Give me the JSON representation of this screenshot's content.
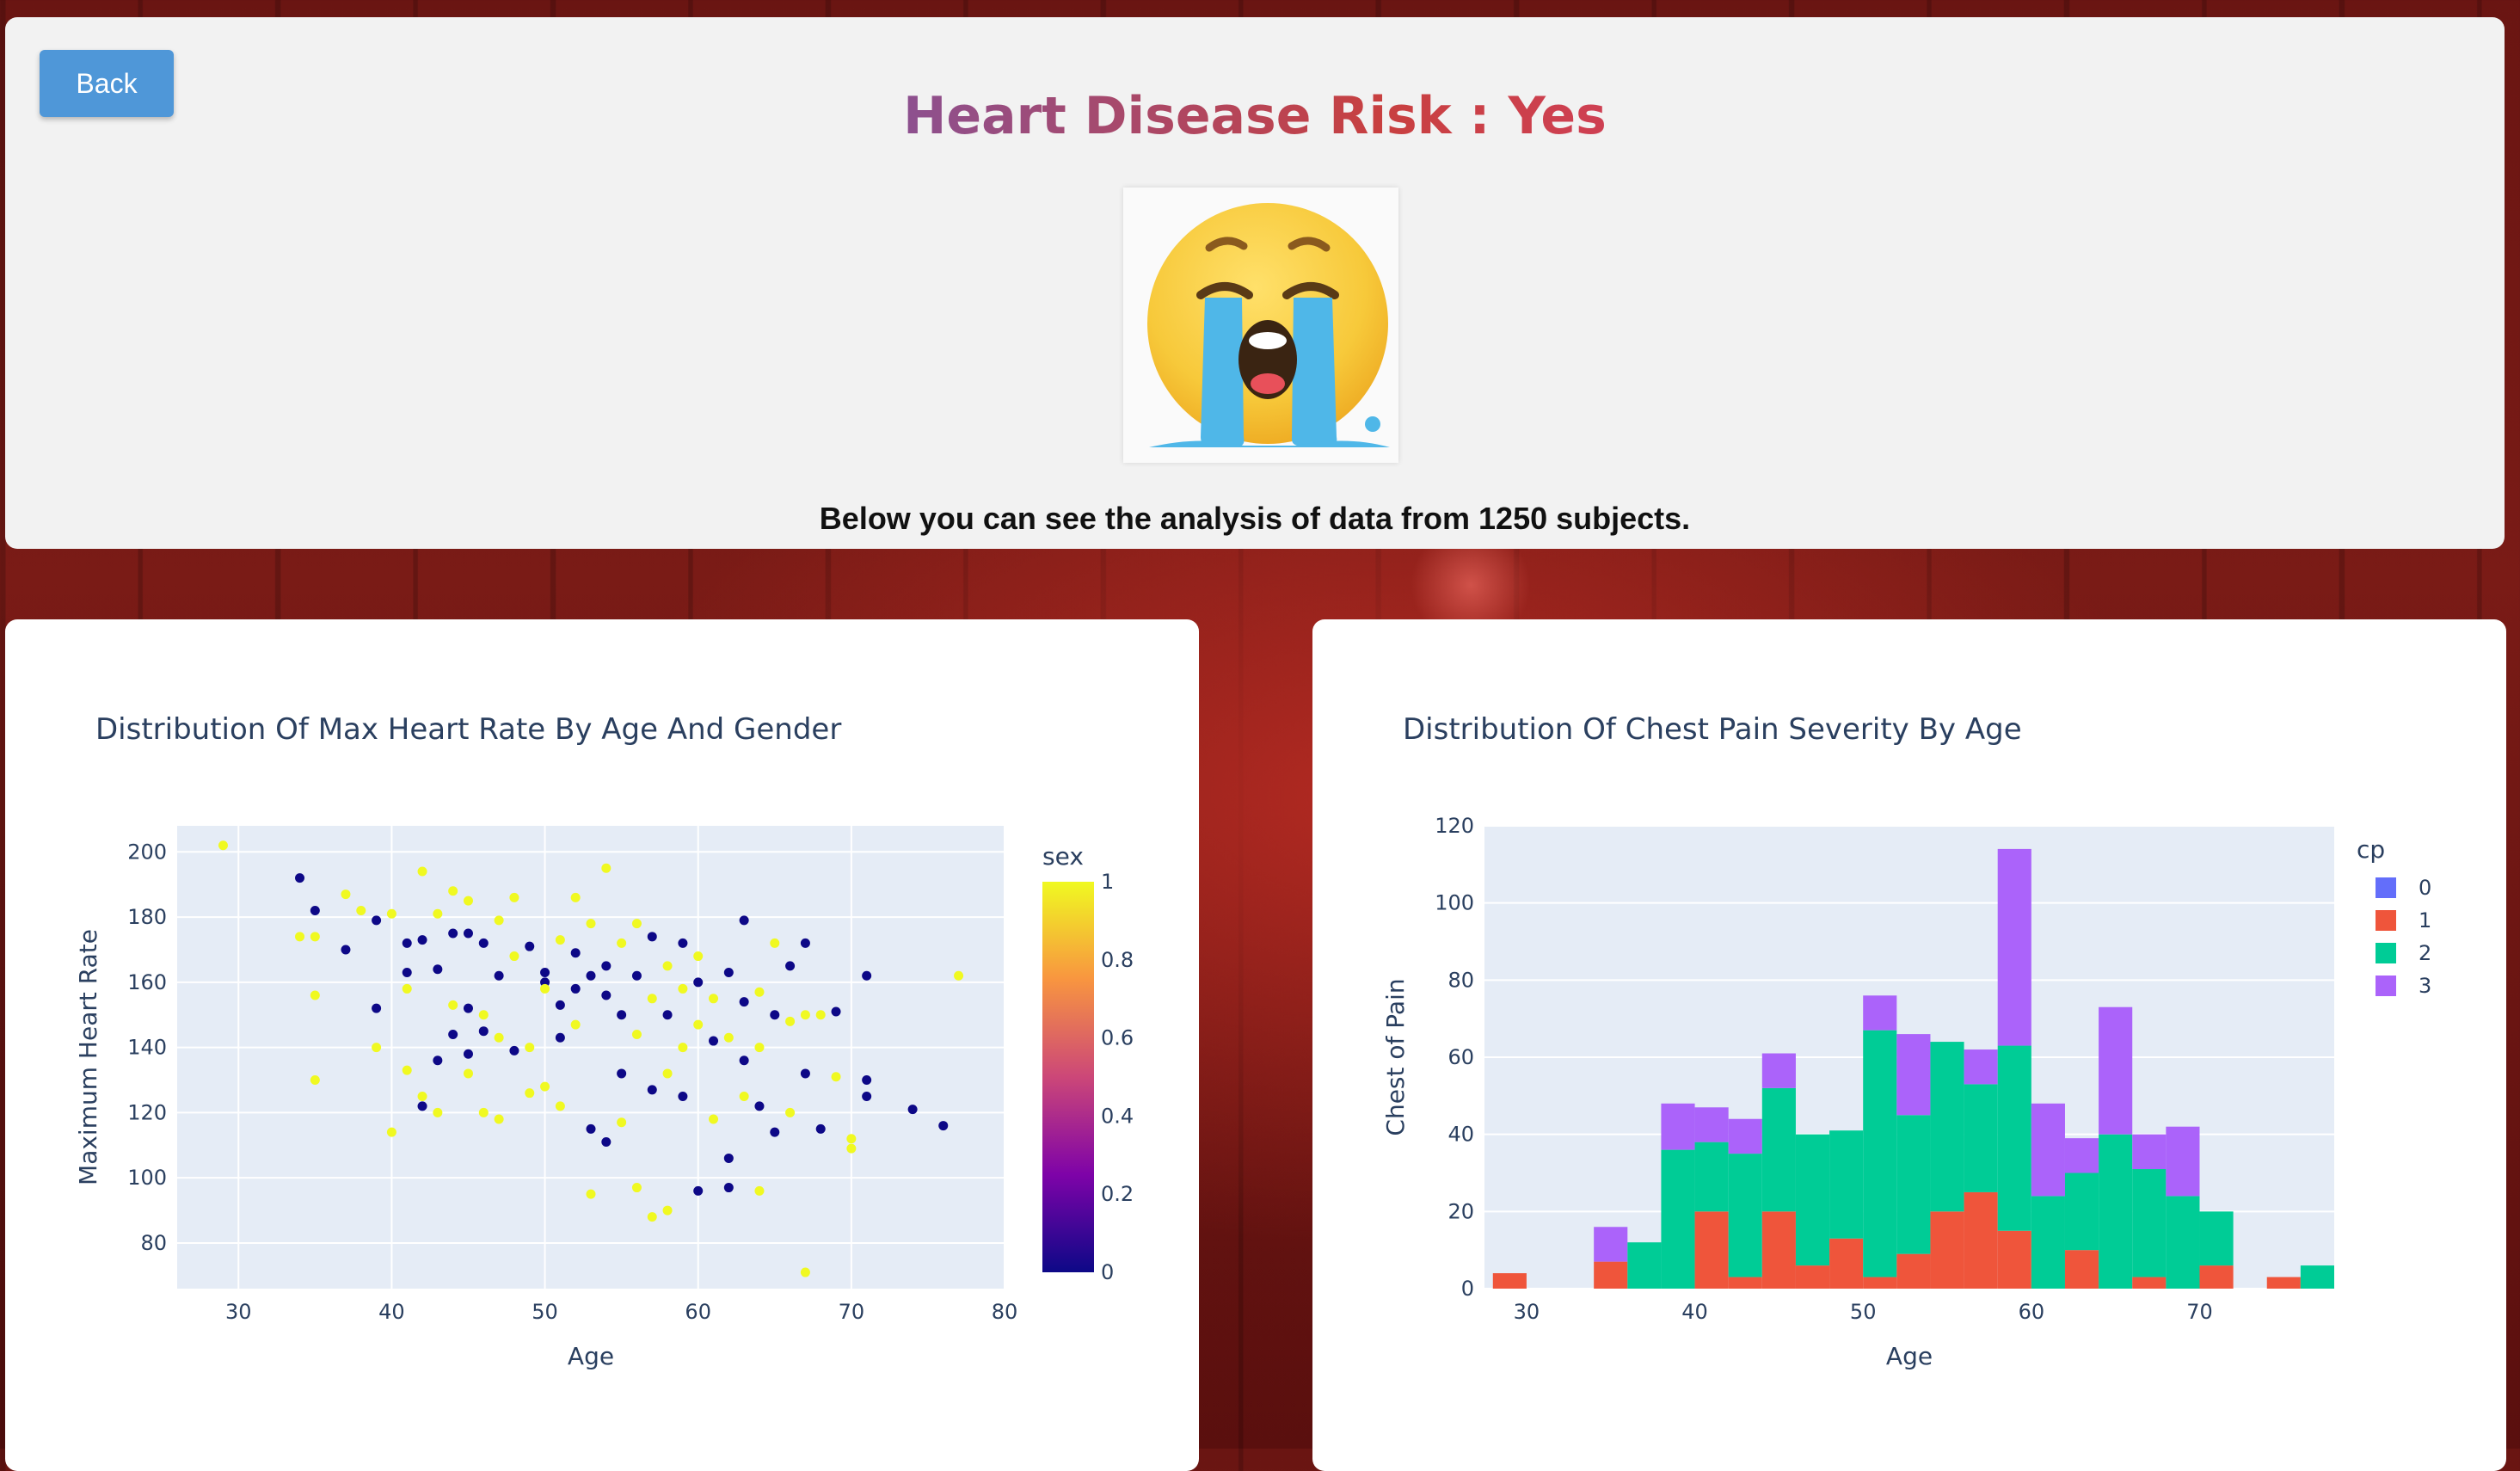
{
  "header": {
    "back_label": "Back",
    "title_prefix": "Heart Disease Risk : ",
    "title_value": "Yes",
    "emoji_icon": "loudly-crying-face-emoji",
    "subtitle": "Below you can see the analysis of data from 1250 subjects."
  },
  "chart_data": [
    {
      "type": "scatter",
      "title": "Distribution Of Max Heart Rate By Age And Gender",
      "xlabel": "Age",
      "ylabel": "Maximum Heart Rate",
      "xlim": [
        26,
        80
      ],
      "ylim": [
        66,
        208
      ],
      "x_ticks": [
        30,
        40,
        50,
        60,
        70,
        80
      ],
      "y_ticks": [
        80,
        100,
        120,
        140,
        160,
        180,
        200
      ],
      "grid": true,
      "colorbar": {
        "title": "sex",
        "ticks": [
          0,
          0.2,
          0.4,
          0.6,
          0.8,
          1
        ],
        "colors": [
          "#0d0887",
          "#7e03a8",
          "#cc4778",
          "#f89540",
          "#f0f921"
        ]
      },
      "points": [
        {
          "x": 29,
          "y": 202,
          "sex": 1
        },
        {
          "x": 34,
          "y": 192,
          "sex": 0
        },
        {
          "x": 35,
          "y": 182,
          "sex": 0
        },
        {
          "x": 34,
          "y": 174,
          "sex": 1
        },
        {
          "x": 35,
          "y": 174,
          "sex": 1
        },
        {
          "x": 35,
          "y": 156,
          "sex": 1
        },
        {
          "x": 35,
          "y": 130,
          "sex": 1
        },
        {
          "x": 37,
          "y": 170,
          "sex": 0
        },
        {
          "x": 37,
          "y": 187,
          "sex": 1
        },
        {
          "x": 38,
          "y": 182,
          "sex": 1
        },
        {
          "x": 39,
          "y": 179,
          "sex": 0
        },
        {
          "x": 39,
          "y": 152,
          "sex": 0
        },
        {
          "x": 39,
          "y": 140,
          "sex": 1
        },
        {
          "x": 40,
          "y": 114,
          "sex": 1
        },
        {
          "x": 40,
          "y": 181,
          "sex": 1
        },
        {
          "x": 41,
          "y": 172,
          "sex": 0
        },
        {
          "x": 41,
          "y": 163,
          "sex": 0
        },
        {
          "x": 41,
          "y": 158,
          "sex": 1
        },
        {
          "x": 41,
          "y": 133,
          "sex": 1
        },
        {
          "x": 42,
          "y": 194,
          "sex": 1
        },
        {
          "x": 42,
          "y": 173,
          "sex": 0
        },
        {
          "x": 42,
          "y": 122,
          "sex": 0
        },
        {
          "x": 42,
          "y": 125,
          "sex": 1
        },
        {
          "x": 43,
          "y": 181,
          "sex": 1
        },
        {
          "x": 43,
          "y": 164,
          "sex": 0
        },
        {
          "x": 43,
          "y": 136,
          "sex": 0
        },
        {
          "x": 43,
          "y": 120,
          "sex": 1
        },
        {
          "x": 44,
          "y": 188,
          "sex": 1
        },
        {
          "x": 44,
          "y": 175,
          "sex": 0
        },
        {
          "x": 44,
          "y": 144,
          "sex": 0
        },
        {
          "x": 44,
          "y": 153,
          "sex": 1
        },
        {
          "x": 45,
          "y": 185,
          "sex": 1
        },
        {
          "x": 45,
          "y": 175,
          "sex": 0
        },
        {
          "x": 45,
          "y": 152,
          "sex": 0
        },
        {
          "x": 45,
          "y": 138,
          "sex": 0
        },
        {
          "x": 45,
          "y": 132,
          "sex": 1
        },
        {
          "x": 46,
          "y": 172,
          "sex": 0
        },
        {
          "x": 46,
          "y": 150,
          "sex": 1
        },
        {
          "x": 46,
          "y": 145,
          "sex": 0
        },
        {
          "x": 46,
          "y": 120,
          "sex": 1
        },
        {
          "x": 47,
          "y": 179,
          "sex": 1
        },
        {
          "x": 47,
          "y": 162,
          "sex": 0
        },
        {
          "x": 47,
          "y": 143,
          "sex": 1
        },
        {
          "x": 47,
          "y": 118,
          "sex": 1
        },
        {
          "x": 48,
          "y": 186,
          "sex": 1
        },
        {
          "x": 48,
          "y": 168,
          "sex": 1
        },
        {
          "x": 48,
          "y": 139,
          "sex": 0
        },
        {
          "x": 49,
          "y": 171,
          "sex": 0
        },
        {
          "x": 49,
          "y": 140,
          "sex": 1
        },
        {
          "x": 49,
          "y": 126,
          "sex": 1
        },
        {
          "x": 50,
          "y": 163,
          "sex": 0
        },
        {
          "x": 50,
          "y": 160,
          "sex": 0
        },
        {
          "x": 50,
          "y": 158,
          "sex": 1
        },
        {
          "x": 50,
          "y": 128,
          "sex": 1
        },
        {
          "x": 51,
          "y": 173,
          "sex": 1
        },
        {
          "x": 51,
          "y": 153,
          "sex": 0
        },
        {
          "x": 51,
          "y": 143,
          "sex": 0
        },
        {
          "x": 51,
          "y": 122,
          "sex": 1
        },
        {
          "x": 52,
          "y": 186,
          "sex": 1
        },
        {
          "x": 52,
          "y": 169,
          "sex": 0
        },
        {
          "x": 52,
          "y": 158,
          "sex": 0
        },
        {
          "x": 52,
          "y": 147,
          "sex": 1
        },
        {
          "x": 53,
          "y": 178,
          "sex": 1
        },
        {
          "x": 53,
          "y": 162,
          "sex": 0
        },
        {
          "x": 53,
          "y": 115,
          "sex": 0
        },
        {
          "x": 53,
          "y": 95,
          "sex": 1
        },
        {
          "x": 54,
          "y": 195,
          "sex": 1
        },
        {
          "x": 54,
          "y": 165,
          "sex": 0
        },
        {
          "x": 54,
          "y": 156,
          "sex": 0
        },
        {
          "x": 54,
          "y": 111,
          "sex": 0
        },
        {
          "x": 55,
          "y": 172,
          "sex": 1
        },
        {
          "x": 55,
          "y": 150,
          "sex": 0
        },
        {
          "x": 55,
          "y": 132,
          "sex": 0
        },
        {
          "x": 55,
          "y": 117,
          "sex": 1
        },
        {
          "x": 56,
          "y": 178,
          "sex": 1
        },
        {
          "x": 56,
          "y": 162,
          "sex": 0
        },
        {
          "x": 56,
          "y": 144,
          "sex": 1
        },
        {
          "x": 56,
          "y": 97,
          "sex": 1
        },
        {
          "x": 57,
          "y": 174,
          "sex": 0
        },
        {
          "x": 57,
          "y": 155,
          "sex": 1
        },
        {
          "x": 57,
          "y": 127,
          "sex": 0
        },
        {
          "x": 57,
          "y": 88,
          "sex": 1
        },
        {
          "x": 58,
          "y": 165,
          "sex": 1
        },
        {
          "x": 58,
          "y": 150,
          "sex": 0
        },
        {
          "x": 58,
          "y": 132,
          "sex": 1
        },
        {
          "x": 58,
          "y": 90,
          "sex": 1
        },
        {
          "x": 59,
          "y": 172,
          "sex": 0
        },
        {
          "x": 59,
          "y": 158,
          "sex": 1
        },
        {
          "x": 59,
          "y": 140,
          "sex": 1
        },
        {
          "x": 59,
          "y": 125,
          "sex": 0
        },
        {
          "x": 60,
          "y": 168,
          "sex": 1
        },
        {
          "x": 60,
          "y": 160,
          "sex": 0
        },
        {
          "x": 60,
          "y": 147,
          "sex": 1
        },
        {
          "x": 60,
          "y": 96,
          "sex": 0
        },
        {
          "x": 61,
          "y": 155,
          "sex": 1
        },
        {
          "x": 61,
          "y": 142,
          "sex": 0
        },
        {
          "x": 61,
          "y": 118,
          "sex": 1
        },
        {
          "x": 62,
          "y": 163,
          "sex": 0
        },
        {
          "x": 62,
          "y": 143,
          "sex": 1
        },
        {
          "x": 62,
          "y": 106,
          "sex": 0
        },
        {
          "x": 62,
          "y": 97,
          "sex": 0
        },
        {
          "x": 63,
          "y": 179,
          "sex": 0
        },
        {
          "x": 63,
          "y": 154,
          "sex": 0
        },
        {
          "x": 63,
          "y": 136,
          "sex": 0
        },
        {
          "x": 63,
          "y": 125,
          "sex": 1
        },
        {
          "x": 64,
          "y": 157,
          "sex": 1
        },
        {
          "x": 64,
          "y": 140,
          "sex": 1
        },
        {
          "x": 64,
          "y": 122,
          "sex": 0
        },
        {
          "x": 64,
          "y": 96,
          "sex": 1
        },
        {
          "x": 65,
          "y": 172,
          "sex": 1
        },
        {
          "x": 65,
          "y": 150,
          "sex": 0
        },
        {
          "x": 65,
          "y": 114,
          "sex": 0
        },
        {
          "x": 66,
          "y": 165,
          "sex": 0
        },
        {
          "x": 66,
          "y": 148,
          "sex": 1
        },
        {
          "x": 66,
          "y": 120,
          "sex": 1
        },
        {
          "x": 67,
          "y": 172,
          "sex": 0
        },
        {
          "x": 67,
          "y": 150,
          "sex": 1
        },
        {
          "x": 67,
          "y": 132,
          "sex": 0
        },
        {
          "x": 67,
          "y": 71,
          "sex": 1
        },
        {
          "x": 68,
          "y": 150,
          "sex": 1
        },
        {
          "x": 68,
          "y": 115,
          "sex": 0
        },
        {
          "x": 69,
          "y": 151,
          "sex": 0
        },
        {
          "x": 69,
          "y": 131,
          "sex": 1
        },
        {
          "x": 70,
          "y": 112,
          "sex": 1
        },
        {
          "x": 70,
          "y": 109,
          "sex": 1
        },
        {
          "x": 71,
          "y": 162,
          "sex": 0
        },
        {
          "x": 71,
          "y": 130,
          "sex": 0
        },
        {
          "x": 71,
          "y": 125,
          "sex": 0
        },
        {
          "x": 74,
          "y": 121,
          "sex": 0
        },
        {
          "x": 76,
          "y": 116,
          "sex": 0
        },
        {
          "x": 77,
          "y": 162,
          "sex": 1
        }
      ]
    },
    {
      "type": "bar",
      "stacked": true,
      "title": "Distribution Of Chest Pain Severity By Age",
      "xlabel": "Age",
      "ylabel": "Chest of Pain",
      "xlim": [
        27.5,
        78
      ],
      "ylim": [
        0,
        120
      ],
      "x_ticks": [
        30,
        40,
        50,
        60,
        70
      ],
      "y_ticks": [
        0,
        20,
        40,
        60,
        80,
        100,
        120
      ],
      "grid": true,
      "bin_width": 2,
      "bin_starts": [
        28,
        30,
        32,
        34,
        36,
        38,
        40,
        42,
        44,
        46,
        48,
        50,
        52,
        54,
        56,
        58,
        60,
        62,
        64,
        66,
        68,
        70,
        72,
        74,
        76
      ],
      "legend_title": "cp",
      "legend_position": "top-right",
      "series": [
        {
          "name": "0",
          "color": "#636efa",
          "values": [
            0,
            0,
            0,
            0,
            0,
            0,
            0,
            0,
            0,
            0,
            0,
            0,
            0,
            0,
            0,
            0,
            0,
            0,
            0,
            0,
            0,
            0,
            0,
            0,
            0
          ]
        },
        {
          "name": "1",
          "color": "#ef553b",
          "values": [
            4,
            0,
            0,
            7,
            0,
            0,
            20,
            3,
            20,
            6,
            13,
            3,
            9,
            20,
            25,
            15,
            0,
            10,
            0,
            3,
            0,
            6,
            0,
            3,
            0
          ]
        },
        {
          "name": "2",
          "color": "#00cc96",
          "values": [
            0,
            0,
            0,
            0,
            12,
            36,
            18,
            32,
            32,
            34,
            28,
            64,
            36,
            44,
            28,
            48,
            24,
            20,
            40,
            28,
            24,
            14,
            0,
            0,
            6
          ]
        },
        {
          "name": "3",
          "color": "#ab63fa",
          "values": [
            0,
            0,
            0,
            9,
            0,
            12,
            9,
            9,
            9,
            0,
            0,
            9,
            21,
            0,
            9,
            51,
            24,
            9,
            33,
            9,
            18,
            0,
            0,
            0,
            0
          ]
        }
      ]
    }
  ]
}
